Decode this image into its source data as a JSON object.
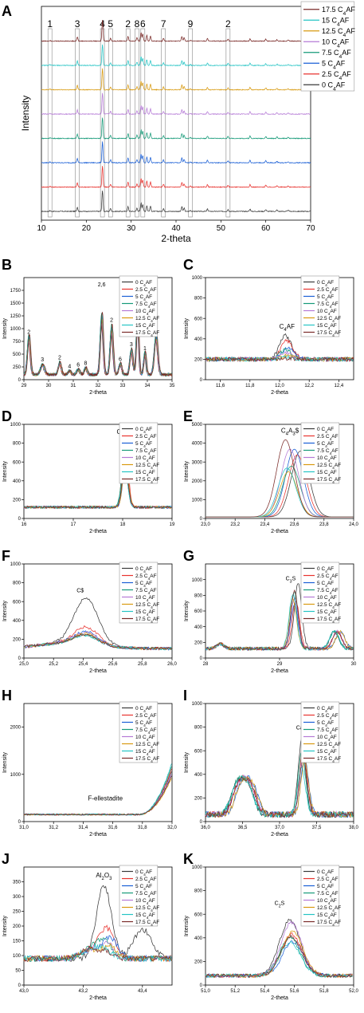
{
  "figure": {
    "panel_labels": [
      "A",
      "B",
      "C",
      "D",
      "E",
      "F",
      "G",
      "H",
      "I",
      "J",
      "K"
    ]
  },
  "colors": {
    "0 C4AF": "#3a3a3a",
    "2.5 C4AF": "#e8332f",
    "5 C4AF": "#1a5fd6",
    "7.5 C4AF": "#159a78",
    "10 C4AF": "#b57ad6",
    "12.5 C4AF": "#d89a10",
    "15 C4AF": "#25c4c4",
    "17.5 C4AF": "#7a2a28"
  },
  "legend_top_first": [
    "17.5 C4AF",
    "15 C4AF",
    "12.5 C4AF",
    "10 C4AF",
    "7.5 C4AF",
    "5 C4AF",
    "2.5 C4AF",
    "0 C4AF"
  ],
  "legend_bottom_first": [
    "0 C4AF",
    "2.5 C4AF",
    "5 C4AF",
    "7.5 C4AF",
    "10 C4AF",
    "12.5 C4AF",
    "15 C4AF",
    "17.5 C4AF"
  ],
  "chart_data": [
    {
      "id": "A",
      "type": "line",
      "xlabel": "2-theta",
      "ylabel": "Intensity",
      "xlim": [
        10,
        70
      ],
      "xticks": [
        10,
        20,
        30,
        40,
        50,
        60,
        70
      ],
      "legend_position": "top-right",
      "offset_stacked": true,
      "peak_markers": [
        {
          "label": "1",
          "x": 11.9
        },
        {
          "label": "3",
          "x": 18.0
        },
        {
          "label": "4",
          "x": 23.6
        },
        {
          "label": "5",
          "x": 25.4
        },
        {
          "label": "2",
          "x": 29.3
        },
        {
          "label": "8",
          "x": 31.3
        },
        {
          "label": "6",
          "x": 32.6
        },
        {
          "label": "7",
          "x": 37.2
        },
        {
          "label": "9",
          "x": 43.2
        },
        {
          "label": "2",
          "x": 51.6
        }
      ],
      "peaks": [
        {
          "x": 11.9,
          "h": 0.08
        },
        {
          "x": 18.0,
          "h": 0.45
        },
        {
          "x": 23.6,
          "h": 2.2
        },
        {
          "x": 25.4,
          "h": 0.3
        },
        {
          "x": 29.3,
          "h": 0.5
        },
        {
          "x": 31.3,
          "h": 0.35
        },
        {
          "x": 32.2,
          "h": 0.9
        },
        {
          "x": 32.6,
          "h": 0.75
        },
        {
          "x": 33.5,
          "h": 0.6
        },
        {
          "x": 34.3,
          "h": 0.55
        },
        {
          "x": 37.2,
          "h": 0.3
        },
        {
          "x": 41.3,
          "h": 0.5
        },
        {
          "x": 41.8,
          "h": 0.35
        },
        {
          "x": 43.2,
          "h": 0.1
        },
        {
          "x": 47.0,
          "h": 0.25
        },
        {
          "x": 51.6,
          "h": 0.2
        },
        {
          "x": 56.5,
          "h": 0.25
        },
        {
          "x": 60.0,
          "h": 0.2
        },
        {
          "x": 62.5,
          "h": 0.15
        },
        {
          "x": 65.0,
          "h": 0.12
        }
      ]
    },
    {
      "id": "B",
      "type": "line",
      "xlabel": "2-theta",
      "ylabel": "Intensity",
      "xlim": [
        29,
        35
      ],
      "xticks": [
        29,
        30,
        31,
        32,
        33,
        34,
        35
      ],
      "ylim": [
        0,
        2000
      ],
      "yticks": [
        0,
        250,
        500,
        750,
        1000,
        1250,
        1500,
        1750
      ],
      "baseline": 100,
      "peaks": [
        {
          "x": 29.2,
          "h": 760,
          "w": 0.06
        },
        {
          "x": 29.75,
          "h": 200,
          "w": 0.08
        },
        {
          "x": 30.45,
          "h": 240,
          "w": 0.06
        },
        {
          "x": 30.85,
          "h": 80,
          "w": 0.06
        },
        {
          "x": 31.2,
          "h": 110,
          "w": 0.06
        },
        {
          "x": 31.5,
          "h": 130,
          "w": 0.06
        },
        {
          "x": 32.15,
          "h": 1180,
          "w": 0.06
        },
        {
          "x": 32.55,
          "h": 950,
          "w": 0.06
        },
        {
          "x": 32.9,
          "h": 220,
          "w": 0.06
        },
        {
          "x": 33.35,
          "h": 500,
          "w": 0.06
        },
        {
          "x": 33.6,
          "h": 1150,
          "w": 0.05
        },
        {
          "x": 33.9,
          "h": 440,
          "w": 0.05
        },
        {
          "x": 34.35,
          "h": 780,
          "w": 0.07
        }
      ],
      "annotations": [
        {
          "text": "2",
          "x": 29.2,
          "y": 900
        },
        {
          "text": "3",
          "x": 29.75,
          "y": 360
        },
        {
          "text": "2",
          "x": 30.45,
          "y": 400
        },
        {
          "text": "4",
          "x": 30.85,
          "y": 230
        },
        {
          "text": "6",
          "x": 31.2,
          "y": 260
        },
        {
          "text": "8",
          "x": 31.5,
          "y": 290
        },
        {
          "text": "2,6",
          "x": 32.15,
          "y": 1830
        },
        {
          "text": "2",
          "x": 32.55,
          "y": 1130
        },
        {
          "text": "6",
          "x": 32.9,
          "y": 370
        },
        {
          "text": "3",
          "x": 33.35,
          "y": 660
        },
        {
          "text": "1",
          "x": 33.6,
          "y": 1340
        },
        {
          "text": "1",
          "x": 33.9,
          "y": 580
        },
        {
          "text": "2",
          "x": 34.35,
          "y": 960
        }
      ],
      "legend_position": "top-right"
    },
    {
      "id": "C",
      "type": "line",
      "xlabel": "2-theta",
      "ylabel": "Intensity",
      "xlim": [
        11.5,
        12.5
      ],
      "xticks": [
        11.6,
        11.8,
        12.0,
        12.2,
        12.4
      ],
      "ylim": [
        0,
        1000
      ],
      "yticks": [
        0,
        200,
        400,
        600,
        800,
        1000
      ],
      "baseline": 200,
      "peak_x": 12.05,
      "peak_w": 0.04,
      "peak_heights": [
        230,
        180,
        110,
        90,
        60,
        40,
        20,
        10
      ],
      "annotations": [
        {
          "text": "C4AF",
          "x": 12.05,
          "y": 500
        }
      ],
      "legend_position": "top-right"
    },
    {
      "id": "D",
      "type": "line",
      "xlabel": "2-theta",
      "ylabel": "Intensity",
      "xlim": [
        16,
        19
      ],
      "xticks": [
        16,
        17,
        18,
        19
      ],
      "ylim": [
        0,
        1000
      ],
      "yticks": [
        0,
        200,
        400,
        600,
        800,
        1000
      ],
      "baseline": 120,
      "peak_x": 18.05,
      "peak_w": 0.06,
      "peak_heights": [
        430,
        730,
        420,
        580,
        440,
        450,
        430,
        450
      ],
      "annotations": [
        {
          "text": "C12A7",
          "x": 18.05,
          "y": 900
        }
      ],
      "legend_position": "top-right"
    },
    {
      "id": "E",
      "type": "line",
      "xlabel": "2-theta",
      "ylabel": "Intensity",
      "xlim": [
        23.0,
        24.0
      ],
      "xticks": [
        23.0,
        23.2,
        23.4,
        23.6,
        23.8,
        24.0
      ],
      "ylim": [
        0,
        5000
      ],
      "yticks": [
        0,
        1000,
        2000,
        3000,
        4000,
        5000
      ],
      "baseline": 80,
      "peak_w": 0.06,
      "peak_xs": [
        23.64,
        23.62,
        23.6,
        23.58,
        23.57,
        23.56,
        23.55,
        23.54
      ],
      "peak_heights": [
        3500,
        3300,
        3600,
        2700,
        3600,
        2400,
        2600,
        4100
      ],
      "annotations": [
        {
          "text": "C4A3$",
          "x": 23.57,
          "y": 4550
        }
      ],
      "legend_position": "top-right"
    },
    {
      "id": "F",
      "type": "line",
      "xlabel": "2-theta",
      "ylabel": "Intensity",
      "xlim": [
        25.0,
        26.0
      ],
      "xticks": [
        25.0,
        25.2,
        25.4,
        25.6,
        25.8,
        26.0
      ],
      "ylim": [
        0,
        1000
      ],
      "yticks": [
        0,
        200,
        400,
        600,
        800,
        1000
      ],
      "baseline": 100,
      "peak_x": 25.42,
      "peak_w": 0.08,
      "peak_heights": [
        490,
        180,
        130,
        100,
        120,
        110,
        90,
        100
      ],
      "annotations": [
        {
          "text": "C$",
          "x": 25.38,
          "y": 700
        }
      ],
      "legend_position": "top-right"
    },
    {
      "id": "G",
      "type": "line",
      "xlabel": "2-theta",
      "ylabel": "Intensity",
      "xlim": [
        28,
        30
      ],
      "xticks": [
        28,
        29,
        30
      ],
      "ylim": [
        0,
        1200
      ],
      "yticks": [
        0,
        200,
        400,
        600,
        800,
        1000
      ],
      "baseline": 120,
      "peak_w": 0.05,
      "peak_xs": [
        29.25,
        29.22,
        29.2,
        29.2,
        29.2,
        29.18,
        29.18,
        29.2
      ],
      "peak_heights": [
        830,
        600,
        570,
        720,
        640,
        630,
        700,
        740
      ],
      "second_peak": {
        "x": 29.78,
        "h": 220,
        "w": 0.06
      },
      "annotations": [
        {
          "text": "C3S",
          "x": 29.15,
          "y": 990
        }
      ],
      "legend_position": "top-right"
    },
    {
      "id": "H",
      "type": "line",
      "xlabel": "2-theta",
      "ylabel": "Intensity",
      "xlim": [
        31.0,
        32.0
      ],
      "xticks": [
        31.0,
        31.2,
        31.4,
        31.6,
        31.8,
        32.0
      ],
      "ylim": [
        0,
        2500
      ],
      "yticks": [
        0,
        1000,
        2000
      ],
      "baseline": 150,
      "rise_start": 31.78,
      "rise_end_values": [
        1100,
        1150,
        1000,
        1200,
        1050,
        950,
        1250,
        1000
      ],
      "annotations": [
        {
          "text": "F-ellestadite",
          "x": 31.55,
          "y": 450
        }
      ],
      "legend_position": "top-right"
    },
    {
      "id": "I",
      "type": "line",
      "xlabel": "2-theta",
      "ylabel": "Intensity",
      "xlim": [
        36.0,
        38.0
      ],
      "xticks": [
        36.0,
        36.5,
        37.0,
        37.5,
        38.0
      ],
      "ylim": [
        0,
        1000
      ],
      "yticks": [
        0,
        200,
        400,
        600,
        800,
        1000
      ],
      "baseline": 60,
      "peak_group_1": {
        "xs": [
          36.45,
          36.6
        ],
        "h": 240,
        "w": 0.08
      },
      "peak_x": 37.32,
      "peak_w": 0.05,
      "peak_heights": [
        620,
        560,
        480,
        520,
        500,
        450,
        400,
        470
      ],
      "annotations": [
        {
          "text": "CaO",
          "x": 37.3,
          "y": 780
        }
      ],
      "legend_position": "top-right"
    },
    {
      "id": "J",
      "type": "line",
      "xlabel": "2-theta",
      "ylabel": "Intensity",
      "xlim": [
        43.0,
        43.5
      ],
      "xticks": [
        43.0,
        43.2,
        43.4
      ],
      "ylim": [
        0,
        400
      ],
      "yticks": [
        0,
        50,
        100,
        150,
        200,
        250,
        300,
        350
      ],
      "baseline": 90,
      "peak_x": 43.28,
      "peak_w": 0.025,
      "peak_heights": [
        250,
        100,
        70,
        60,
        50,
        40,
        30,
        20
      ],
      "annotations": [
        {
          "text": "Al2O3",
          "x": 43.27,
          "y": 365
        }
      ],
      "legend_position": "top-right"
    },
    {
      "id": "K",
      "type": "line",
      "xlabel": "2-theta",
      "ylabel": "Intensity",
      "xlim": [
        51.0,
        52.0
      ],
      "xticks": [
        51.0,
        51.2,
        51.4,
        51.6,
        51.8,
        52.0
      ],
      "ylim": [
        0,
        1000
      ],
      "yticks": [
        0,
        200,
        400,
        600,
        800,
        1000
      ],
      "baseline": 80,
      "peak_x": 51.58,
      "peak_w": 0.07,
      "peak_heights": [
        470,
        350,
        290,
        320,
        450,
        370,
        280,
        330
      ],
      "annotations": [
        {
          "text": "C2S",
          "x": 51.5,
          "y": 680
        }
      ],
      "legend_position": "top-right"
    }
  ]
}
